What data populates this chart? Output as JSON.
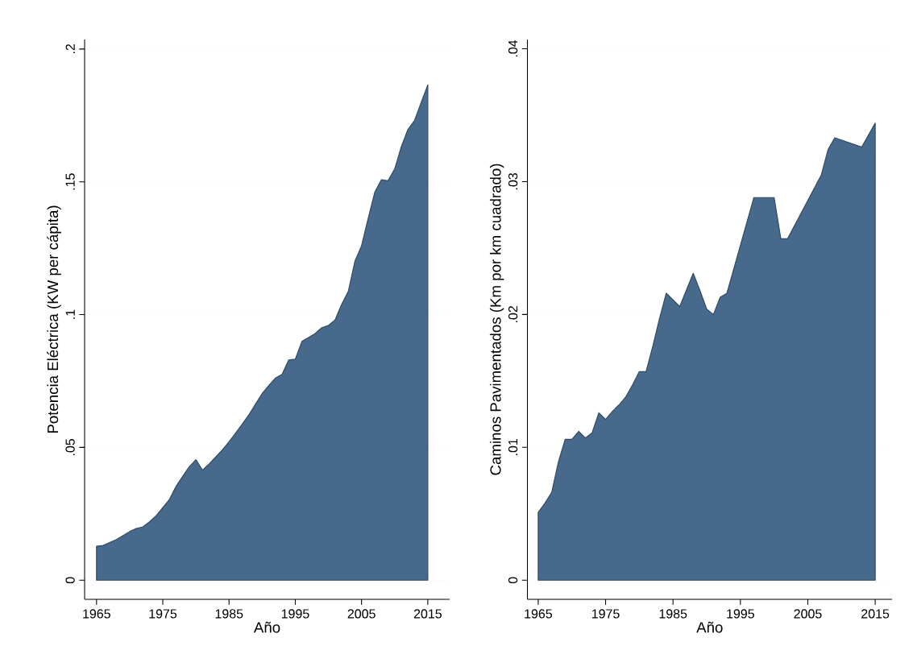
{
  "chart_data": [
    {
      "type": "area",
      "color": "#476a8c",
      "grid": "y",
      "xlabel": "Año",
      "ylabel": "Potencia Eléctrica (KW per cápita)",
      "x": [
        1965,
        1966,
        1968,
        1970,
        1971,
        1972,
        1973,
        1974,
        1975,
        1976,
        1977,
        1978,
        1979,
        1980,
        1981,
        1982,
        1983,
        1984,
        1985,
        1986,
        1987,
        1988,
        1989,
        1990,
        1991,
        1992,
        1993,
        1994,
        1995,
        1996,
        1997,
        1998,
        1999,
        2000,
        2001,
        2002,
        2003,
        2004,
        2005,
        2006,
        2007,
        2008,
        2009,
        2010,
        2011,
        2012,
        2013,
        2014,
        2015
      ],
      "values": [
        0.0128,
        0.0131,
        0.0153,
        0.0183,
        0.0195,
        0.0201,
        0.022,
        0.0243,
        0.0273,
        0.0304,
        0.0353,
        0.0391,
        0.0427,
        0.0454,
        0.0414,
        0.0438,
        0.0464,
        0.0491,
        0.0521,
        0.0554,
        0.0588,
        0.0623,
        0.0663,
        0.0703,
        0.0733,
        0.0761,
        0.0775,
        0.0829,
        0.0832,
        0.0899,
        0.0914,
        0.0929,
        0.0951,
        0.0959,
        0.098,
        0.1039,
        0.1087,
        0.1201,
        0.1259,
        0.1362,
        0.1461,
        0.1508,
        0.1504,
        0.1548,
        0.1632,
        0.1697,
        0.1731,
        0.1799,
        0.1865
      ],
      "xlim": [
        1963.2,
        2018.3
      ],
      "ylim": [
        -0.0072,
        0.2036
      ],
      "xticks": [
        1965,
        1975,
        1985,
        1995,
        2005,
        2015
      ],
      "yticks": [
        0,
        {
          "value": 0.05,
          "label": ".05"
        },
        {
          "value": 0.1,
          "label": ".1"
        },
        {
          "value": 0.15,
          "label": ".15"
        },
        {
          "value": 0.2,
          "label": ".2"
        }
      ]
    },
    {
      "type": "area",
      "color": "#476a8c",
      "grid": "y",
      "xlabel": "Año",
      "ylabel": "Caminos Pavimentados (Km por km cuadrado)",
      "x": [
        1965,
        1966,
        1967,
        1968,
        1969,
        1970,
        1971,
        1972,
        1973,
        1974,
        1975,
        1976,
        1977,
        1978,
        1979,
        1980,
        1981,
        1982,
        1983,
        1984,
        1986,
        1988,
        1989,
        1990,
        1991,
        1992,
        1993,
        1997,
        2000,
        2001,
        2002,
        2007,
        2008,
        2009,
        2013,
        2015
      ],
      "values": [
        0.0051,
        0.0058,
        0.0066,
        0.0089,
        0.0106,
        0.0106,
        0.0112,
        0.0107,
        0.0111,
        0.0126,
        0.0121,
        0.0127,
        0.0132,
        0.0138,
        0.0147,
        0.0157,
        0.0157,
        0.0176,
        0.0197,
        0.0216,
        0.0206,
        0.0231,
        0.0218,
        0.0204,
        0.02,
        0.0213,
        0.0216,
        0.0288,
        0.0288,
        0.0257,
        0.0257,
        0.0305,
        0.0324,
        0.0333,
        0.0326,
        0.0344
      ],
      "xlim": [
        1963.4,
        2017.5
      ],
      "ylim": [
        -0.00144,
        0.0407
      ],
      "xticks": [
        1965,
        1975,
        1985,
        1995,
        2005,
        2015
      ],
      "yticks": [
        0,
        {
          "value": 0.01,
          "label": ".01"
        },
        {
          "value": 0.02,
          "label": ".02"
        },
        {
          "value": 0.03,
          "label": ".03"
        },
        {
          "value": 0.04,
          "label": ".04"
        }
      ]
    }
  ]
}
